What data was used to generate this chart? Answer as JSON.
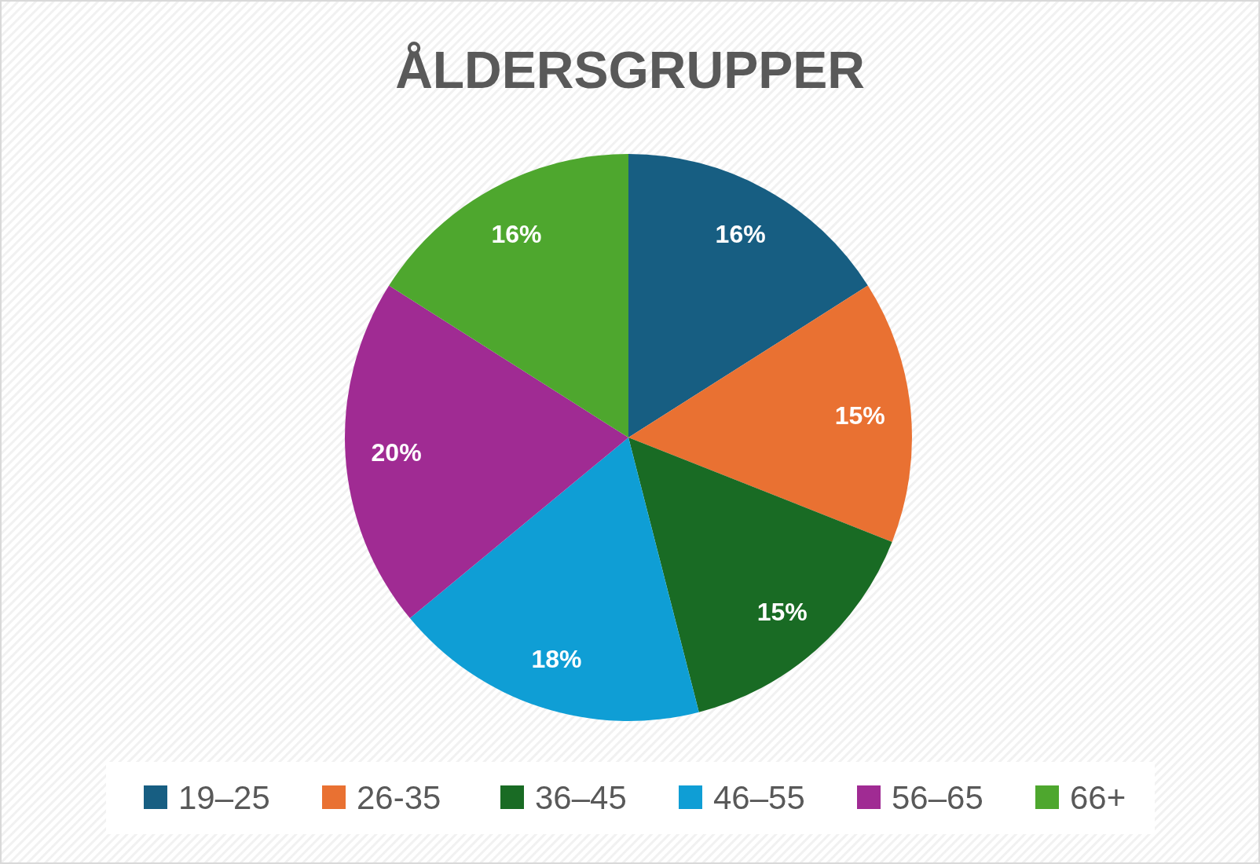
{
  "chart_data": {
    "type": "pie",
    "title": "ÅLDERSGRUPPER",
    "categories": [
      "19–25",
      "26-35",
      "36–45",
      "46–55",
      "56–65",
      "66+"
    ],
    "values": [
      16,
      15,
      15,
      18,
      20,
      16
    ],
    "colors": [
      "#175e82",
      "#e97132",
      "#196b24",
      "#0f9ed5",
      "#a02b93",
      "#4ea72e"
    ],
    "value_labels": [
      "16%",
      "15%",
      "15%",
      "18%",
      "20%",
      "16%"
    ],
    "legend": "bottom"
  }
}
